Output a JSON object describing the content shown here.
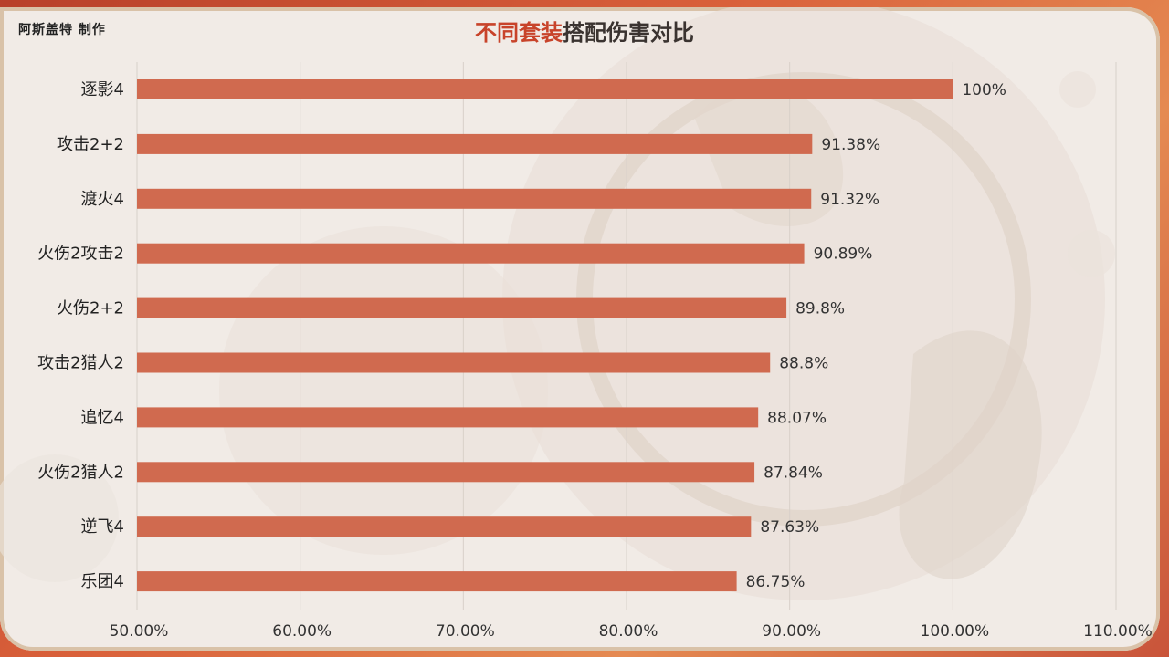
{
  "header": {
    "credit": "阿斯盖特 制作",
    "title_highlight": "不同套装",
    "title_rest": "搭配伤害对比"
  },
  "colors": {
    "bar": "#d06a4f",
    "title_highlight": "#c8432a",
    "frame": "#d9603a"
  },
  "chart_data": {
    "type": "bar",
    "orientation": "horizontal",
    "title": "不同套装搭配伤害对比",
    "categories": [
      "逐影4",
      "攻击2+2",
      "渡火4",
      "火伤2攻击2",
      "火伤2+2",
      "攻击2猎人2",
      "追忆4",
      "火伤2猎人2",
      "逆飞4",
      "乐团4"
    ],
    "values": [
      100,
      91.38,
      91.32,
      90.89,
      89.8,
      88.8,
      88.07,
      87.84,
      87.63,
      86.75
    ],
    "value_labels": [
      "100%",
      "91.38%",
      "91.32%",
      "90.89%",
      "89.8%",
      "88.8%",
      "88.07%",
      "87.84%",
      "87.63%",
      "86.75%"
    ],
    "xlim": [
      50,
      110
    ],
    "x_ticks": [
      50,
      60,
      70,
      80,
      90,
      100,
      110
    ],
    "x_tick_labels": [
      "50.00%",
      "60.00%",
      "70.00%",
      "80.00%",
      "90.00%",
      "100.00%",
      "110.00%"
    ],
    "grid": "vertical",
    "legend": "none"
  }
}
